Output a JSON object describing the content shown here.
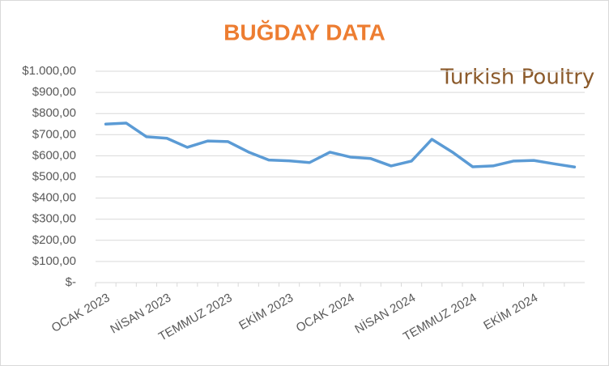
{
  "chart_data": {
    "type": "line",
    "title": "BUĞDAY DATA",
    "logo": "Turkish Poultry",
    "categories": [
      "OCAK 2023",
      null,
      null,
      "NİSAN 2023",
      null,
      null,
      "TEMMUZ 2023",
      null,
      null,
      "EKİM 2023",
      null,
      null,
      "OCAK 2024",
      null,
      null,
      "NİSAN 2024",
      null,
      null,
      "TEMMUZ 2024",
      null,
      null,
      "EKİM 2024",
      null,
      null
    ],
    "series": [
      {
        "color": "#5b9bd5",
        "values": [
          750,
          755,
          690,
          683,
          640,
          670,
          667,
          618,
          580,
          576,
          568,
          617,
          594,
          587,
          552,
          575,
          678,
          618,
          548,
          552,
          575,
          578,
          562,
          547
        ]
      }
    ],
    "ylim": [
      0,
      1000
    ],
    "yticks": [
      {
        "value": 0,
        "label": "$-"
      },
      {
        "value": 100,
        "label": "$100,00"
      },
      {
        "value": 200,
        "label": "$200,00"
      },
      {
        "value": 300,
        "label": "$300,00"
      },
      {
        "value": 400,
        "label": "$400,00"
      },
      {
        "value": 500,
        "label": "$500,00"
      },
      {
        "value": 600,
        "label": "$600,00"
      },
      {
        "value": 700,
        "label": "$700,00"
      },
      {
        "value": 800,
        "label": "$800,00"
      },
      {
        "value": 900,
        "label": "$900,00"
      },
      {
        "value": 1000,
        "label": "$1.000,00"
      }
    ],
    "grid": true
  }
}
